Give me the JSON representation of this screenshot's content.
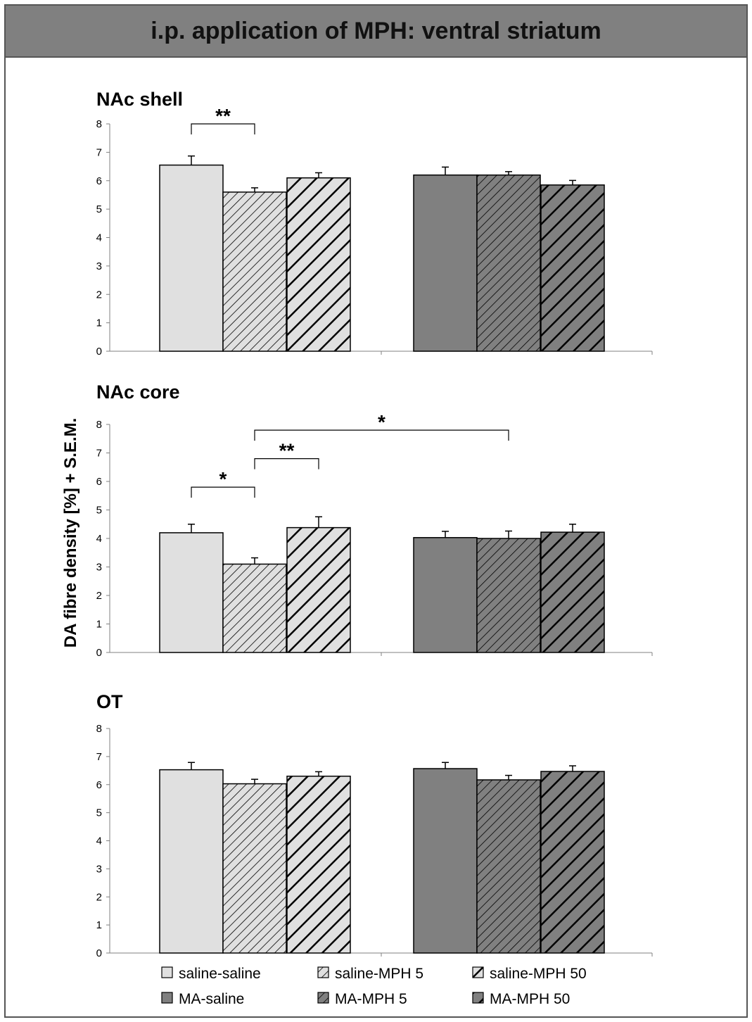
{
  "title": "i.p. application of MPH: ventral striatum",
  "ylabel": "DA fibre density [%] + S.E.M.",
  "colors": {
    "saline_fill": "#e0e0e0",
    "ma_fill": "#808080",
    "stroke": "#000000",
    "title_bar": "#808080"
  },
  "legend": [
    {
      "label": "saline-saline",
      "group": "saline",
      "pattern": "solid"
    },
    {
      "label": "saline-MPH 5",
      "group": "saline",
      "pattern": "thin-hatch"
    },
    {
      "label": "saline-MPH 50",
      "group": "saline",
      "pattern": "thick-hatch"
    },
    {
      "label": "MA-saline",
      "group": "ma",
      "pattern": "solid"
    },
    {
      "label": "MA-MPH 5",
      "group": "ma",
      "pattern": "thin-hatch"
    },
    {
      "label": "MA-MPH 50",
      "group": "ma",
      "pattern": "thick-hatch"
    }
  ],
  "chart_data": [
    {
      "type": "bar",
      "title": "NAc shell",
      "series_names": [
        "saline-saline",
        "saline-MPH 5",
        "saline-MPH 50",
        "MA-saline",
        "MA-MPH 5",
        "MA-MPH 50"
      ],
      "values": [
        6.55,
        5.6,
        6.1,
        6.2,
        6.2,
        5.85
      ],
      "errors": [
        0.32,
        0.15,
        0.18,
        0.28,
        0.12,
        0.16
      ],
      "ylim": [
        0,
        8
      ],
      "yticks": [
        0,
        1,
        2,
        3,
        4,
        5,
        6,
        7,
        8
      ],
      "significance": [
        {
          "from": 0,
          "to": 1,
          "level": 8.0,
          "label": "**"
        }
      ]
    },
    {
      "type": "bar",
      "title": "NAc core",
      "series_names": [
        "saline-saline",
        "saline-MPH 5",
        "saline-MPH 50",
        "MA-saline",
        "MA-MPH 5",
        "MA-MPH 50"
      ],
      "values": [
        4.2,
        3.1,
        4.38,
        4.03,
        4.0,
        4.22
      ],
      "errors": [
        0.3,
        0.22,
        0.38,
        0.22,
        0.26,
        0.28
      ],
      "ylim": [
        0,
        8
      ],
      "yticks": [
        0,
        1,
        2,
        3,
        4,
        5,
        6,
        7,
        8
      ],
      "significance": [
        {
          "from": 0,
          "to": 1,
          "level": 5.8,
          "label": "*"
        },
        {
          "from": 1,
          "to": 2,
          "level": 6.8,
          "label": "**"
        },
        {
          "from": 1,
          "to": 4,
          "level": 7.8,
          "label": "*"
        }
      ]
    },
    {
      "type": "bar",
      "title": "OT",
      "series_names": [
        "saline-saline",
        "saline-MPH 5",
        "saline-MPH 50",
        "MA-saline",
        "MA-MPH 5",
        "MA-MPH 50"
      ],
      "values": [
        6.53,
        6.03,
        6.3,
        6.57,
        6.17,
        6.47
      ],
      "errors": [
        0.26,
        0.16,
        0.16,
        0.22,
        0.16,
        0.2
      ],
      "ylim": [
        0,
        8
      ],
      "yticks": [
        0,
        1,
        2,
        3,
        4,
        5,
        6,
        7,
        8
      ],
      "significance": []
    }
  ]
}
